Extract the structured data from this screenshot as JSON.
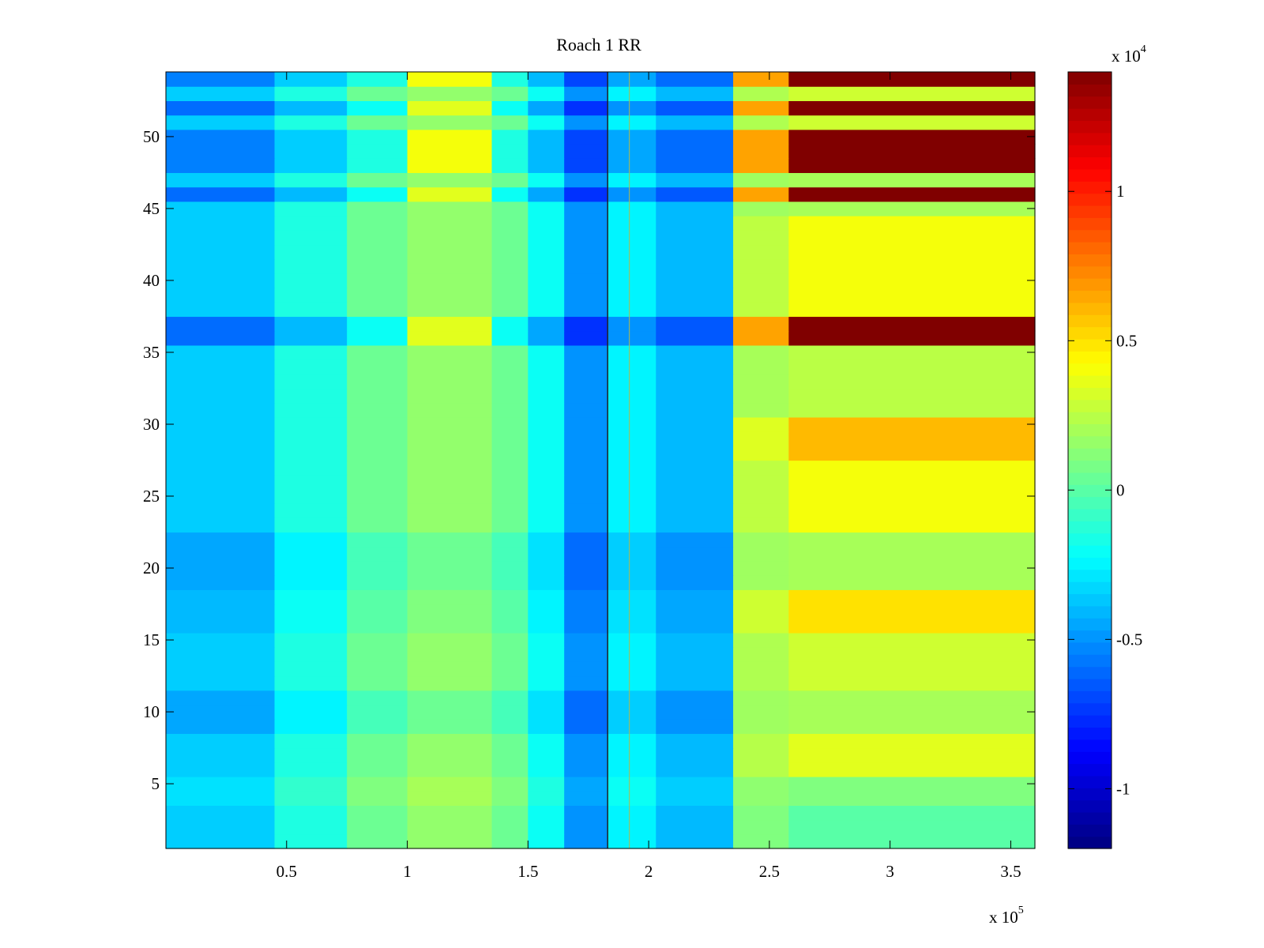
{
  "chart_data": {
    "type": "heatmap",
    "title": "Roach 1 RR",
    "xlabel": "",
    "ylabel": "",
    "x_exponent_label": "x 10",
    "x_exponent": "5",
    "xlim": [
      0,
      3.6
    ],
    "ylim": [
      0.5,
      54.5
    ],
    "x_ticks": [
      {
        "value": 0.5,
        "label": "0.5"
      },
      {
        "value": 1,
        "label": "1"
      },
      {
        "value": 1.5,
        "label": "1.5"
      },
      {
        "value": 2,
        "label": "2"
      },
      {
        "value": 2.5,
        "label": "2.5"
      },
      {
        "value": 3,
        "label": "3"
      },
      {
        "value": 3.5,
        "label": "3.5"
      }
    ],
    "y_ticks": [
      {
        "value": 5,
        "label": "5"
      },
      {
        "value": 10,
        "label": "10"
      },
      {
        "value": 15,
        "label": "15"
      },
      {
        "value": 20,
        "label": "20"
      },
      {
        "value": 25,
        "label": "25"
      },
      {
        "value": 30,
        "label": "30"
      },
      {
        "value": 35,
        "label": "35"
      },
      {
        "value": 40,
        "label": "40"
      },
      {
        "value": 45,
        "label": "45"
      },
      {
        "value": 50,
        "label": "50"
      }
    ],
    "colorbar": {
      "colormap": "jet",
      "range": [
        -1.2,
        1.4
      ],
      "exponent_label": "x 10",
      "exponent": "4",
      "ticks": [
        {
          "value": -1,
          "label": "-1"
        },
        {
          "value": -0.5,
          "label": "-0.5"
        },
        {
          "value": 0,
          "label": "0"
        },
        {
          "value": 0.5,
          "label": "0.5"
        },
        {
          "value": 1,
          "label": "1"
        }
      ]
    },
    "x_bands": [
      {
        "x0": 0.0,
        "x1": 0.45,
        "base": -0.35
      },
      {
        "x0": 0.45,
        "x1": 0.75,
        "base": -0.15
      },
      {
        "x0": 0.75,
        "x1": 1.0,
        "base": 0.05
      },
      {
        "x0": 1.0,
        "x1": 1.35,
        "base": 0.15
      },
      {
        "x0": 1.35,
        "x1": 1.5,
        "base": 0.05
      },
      {
        "x0": 1.5,
        "x1": 1.65,
        "base": -0.2
      },
      {
        "x0": 1.65,
        "x1": 1.83,
        "base": -0.5
      },
      {
        "x0": 1.83,
        "x1": 2.03,
        "base": -0.25
      },
      {
        "x0": 2.03,
        "x1": 2.35,
        "base": -0.4
      },
      {
        "x0": 2.35,
        "x1": 2.58,
        "base": 0.1
      },
      {
        "x0": 2.58,
        "x1": 3.6,
        "base": 0.55
      }
    ],
    "row_groups": [
      {
        "rows": [
          1,
          3
        ],
        "offset": 0.0,
        "right": 0.0
      },
      {
        "rows": [
          4,
          5
        ],
        "offset": 0.05,
        "right": 0.1
      },
      {
        "rows": [
          6,
          8
        ],
        "offset": 0.0,
        "right": 0.35
      },
      {
        "rows": [
          9,
          11
        ],
        "offset": -0.1,
        "right": 0.2
      },
      {
        "rows": [
          12,
          15
        ],
        "offset": 0.0,
        "right": 0.3
      },
      {
        "rows": [
          16,
          18
        ],
        "offset": -0.05,
        "right": 0.5
      },
      {
        "rows": [
          19,
          22
        ],
        "offset": -0.1,
        "right": 0.2
      },
      {
        "rows": [
          23,
          27
        ],
        "offset": 0.0,
        "right": 0.4
      },
      {
        "rows": [
          28,
          30
        ],
        "offset": 0.0,
        "right": 0.6
      },
      {
        "rows": [
          31,
          35
        ],
        "offset": 0.0,
        "right": 0.25
      },
      {
        "rows": [
          36,
          37
        ],
        "offset": 0.05,
        "right": 1.4
      },
      {
        "rows": [
          38,
          44
        ],
        "offset": 0.0,
        "right": 0.4
      },
      {
        "rows": [
          45,
          45
        ],
        "offset": 0.0,
        "right": 0.2
      },
      {
        "rows": [
          46,
          46
        ],
        "offset": 0.05,
        "right": 1.4
      },
      {
        "rows": [
          47,
          47
        ],
        "offset": 0.0,
        "right": 0.2
      },
      {
        "rows": [
          48,
          50
        ],
        "offset": 0.1,
        "right": 1.4
      },
      {
        "rows": [
          51,
          51
        ],
        "offset": 0.0,
        "right": 0.3
      },
      {
        "rows": [
          52,
          52
        ],
        "offset": 0.05,
        "right": 1.4
      },
      {
        "rows": [
          53,
          53
        ],
        "offset": 0.0,
        "right": 0.3
      },
      {
        "rows": [
          54,
          54
        ],
        "offset": 0.1,
        "right": 1.4
      }
    ],
    "vertical_lines_x": [
      1.83,
      1.92
    ]
  }
}
